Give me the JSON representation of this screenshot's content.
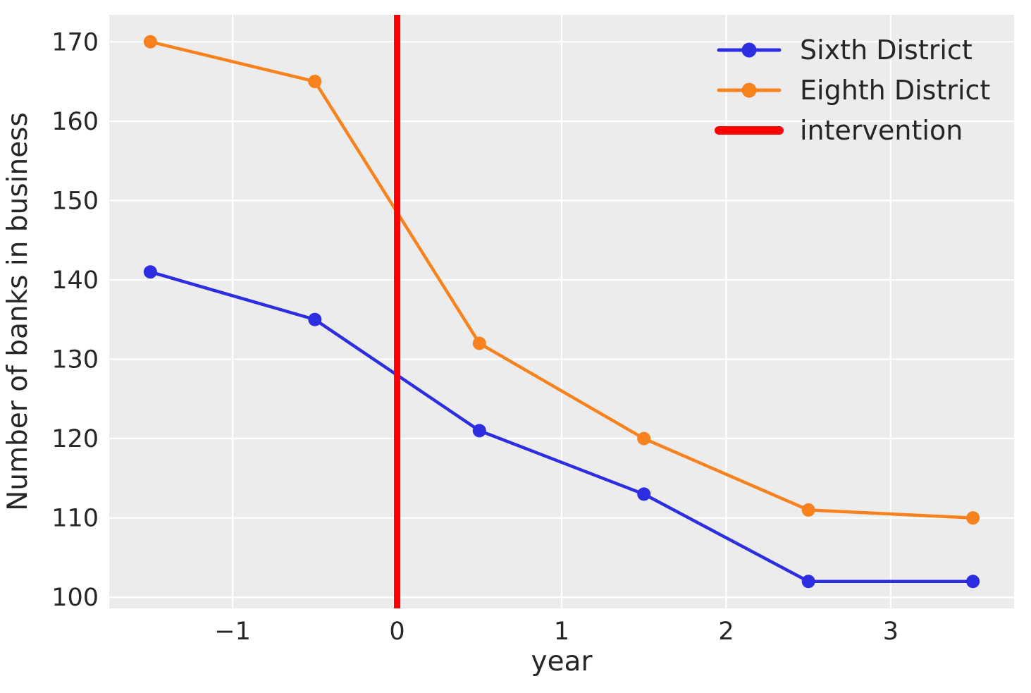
{
  "figure": {
    "background_color": "#ffffff",
    "plot_background_color": "#ececec",
    "grid_color": "#ffffff",
    "text_color": "#262626"
  },
  "chart_data": {
    "type": "line",
    "title": "",
    "xlabel": "year",
    "ylabel": "Number of banks in business",
    "x": [
      -1.5,
      -0.5,
      0.5,
      1.5,
      2.5,
      3.5
    ],
    "series": [
      {
        "name": "Sixth District",
        "color": "#2d2de1",
        "values": [
          141,
          135,
          121,
          113,
          102,
          102
        ]
      },
      {
        "name": "Eighth District",
        "color": "#f8821e",
        "values": [
          170,
          165,
          132,
          120,
          111,
          110
        ]
      }
    ],
    "intervention_line": {
      "label": "intervention",
      "x": 0,
      "color": "#ff0000"
    },
    "x_ticks": [
      -1,
      0,
      1,
      2,
      3
    ],
    "x_tick_labels": [
      "−1",
      "0",
      "1",
      "2",
      "3"
    ],
    "y_ticks": [
      100,
      110,
      120,
      130,
      140,
      150,
      160,
      170
    ],
    "y_tick_labels": [
      "100",
      "110",
      "120",
      "130",
      "140",
      "150",
      "160",
      "170"
    ],
    "xlim": [
      -1.75,
      3.75
    ],
    "ylim": [
      98.6,
      173.4
    ],
    "grid": true,
    "legend_position": "upper right",
    "legend_entries": [
      "Sixth District",
      "Eighth District",
      "intervention"
    ]
  }
}
